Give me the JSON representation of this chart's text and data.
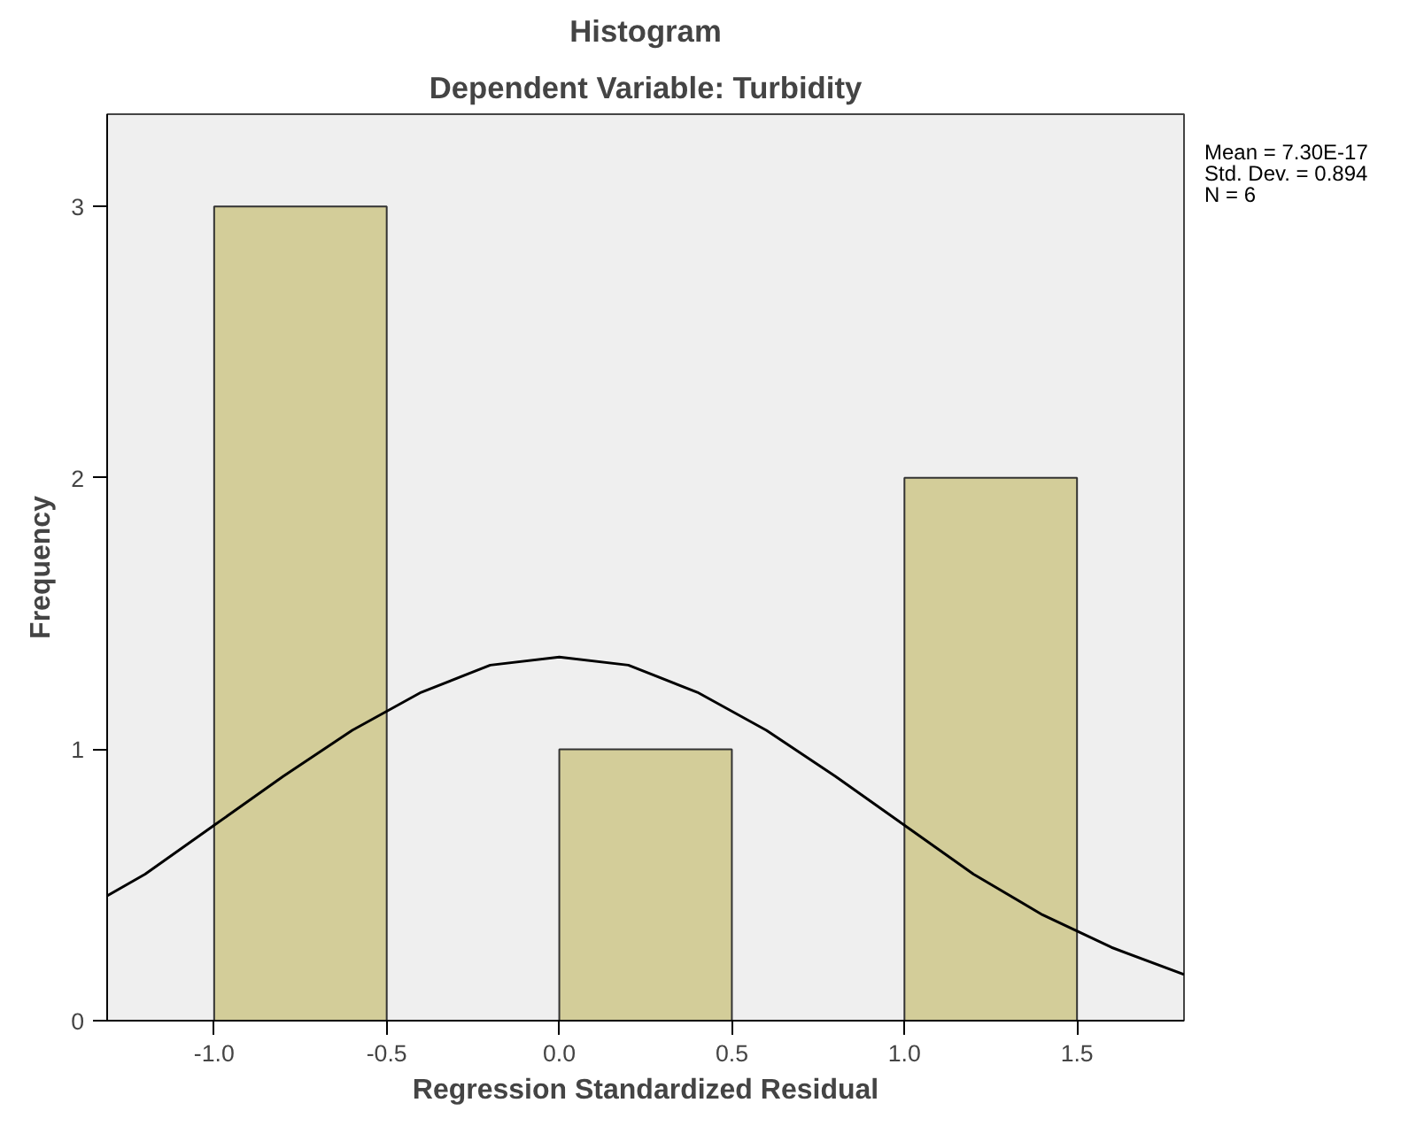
{
  "chart_data": {
    "type": "histogram",
    "title": "Histogram",
    "subtitle": "Dependent Variable: Turbidity",
    "xlabel": "Regression Standardized Residual",
    "ylabel": "Frequency",
    "bins": [
      -1.0,
      -0.5,
      0.0,
      0.5,
      1.0,
      1.5
    ],
    "values": [
      3,
      0,
      1,
      0,
      2
    ],
    "color": "#d3cd99",
    "series": [
      {
        "type": "line",
        "color": "#000000",
        "x": [
          -1.31,
          -1.2,
          -1.0,
          -0.8,
          -0.6,
          -0.4,
          -0.2,
          0.0,
          0.2,
          0.4,
          0.6,
          0.8,
          1.0,
          1.2,
          1.4,
          1.6,
          1.81
        ],
        "values": [
          0.46,
          0.54,
          0.72,
          0.9,
          1.07,
          1.21,
          1.31,
          1.34,
          1.31,
          1.21,
          1.07,
          0.9,
          0.72,
          0.54,
          0.39,
          0.27,
          0.17
        ]
      }
    ],
    "xlim": [
      -1.31,
      1.81
    ],
    "ylim": [
      0,
      3.34
    ],
    "xticks": [
      {
        "value": -1.0,
        "label": "-1.0"
      },
      {
        "value": -0.5,
        "label": "-0.5"
      },
      {
        "value": 0.0,
        "label": "0.0"
      },
      {
        "value": 0.5,
        "label": "0.5"
      },
      {
        "value": 1.0,
        "label": "1.0"
      },
      {
        "value": 1.5,
        "label": "1.5"
      }
    ],
    "yticks": [
      0,
      1,
      2,
      3
    ],
    "grid": false,
    "annotations": [
      "Mean = 7.30E-17\nStd. Dev. = 0.894\nN = 6"
    ]
  }
}
